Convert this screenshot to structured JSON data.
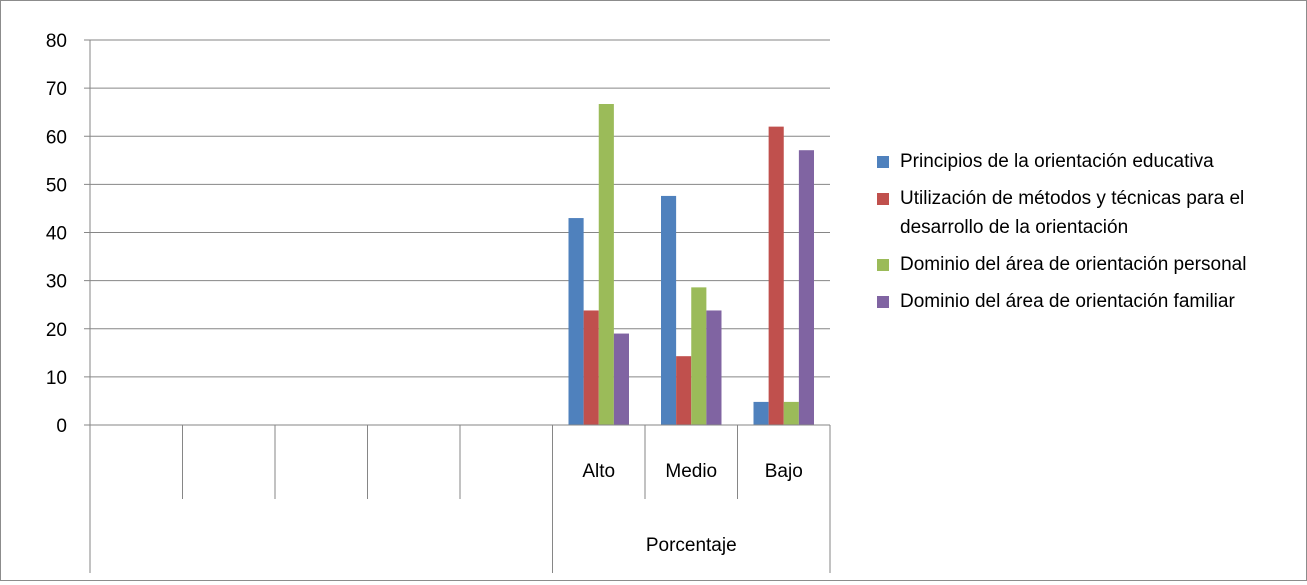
{
  "chart_data": {
    "type": "bar",
    "y_ticks": [
      "0",
      "10",
      "20",
      "30",
      "40",
      "50",
      "60",
      "70",
      "80"
    ],
    "ylim": [
      0,
      80
    ],
    "grid": true,
    "legend_position": "right",
    "categories": [
      "",
      "",
      "",
      "",
      "",
      "Alto",
      "Medio",
      "Bajo"
    ],
    "group_label": "Porcentaje",
    "series": [
      {
        "name": "Principios de la orientación educativa",
        "color": "#4f81bd",
        "values": [
          null,
          null,
          null,
          null,
          null,
          43,
          47.6,
          4.8
        ]
      },
      {
        "name": "Utilización de métodos y técnicas para el desarrollo de la orientación",
        "color": "#c0504d",
        "values": [
          null,
          null,
          null,
          null,
          null,
          23.8,
          14.3,
          62
        ]
      },
      {
        "name": "Dominio del área de orientación personal",
        "color": "#9bbb59",
        "values": [
          null,
          null,
          null,
          null,
          null,
          66.7,
          28.6,
          4.8
        ]
      },
      {
        "name": "Dominio del área de orientación familiar",
        "color": "#8064a2",
        "values": [
          null,
          null,
          null,
          null,
          null,
          19,
          23.8,
          57.1
        ]
      }
    ]
  }
}
